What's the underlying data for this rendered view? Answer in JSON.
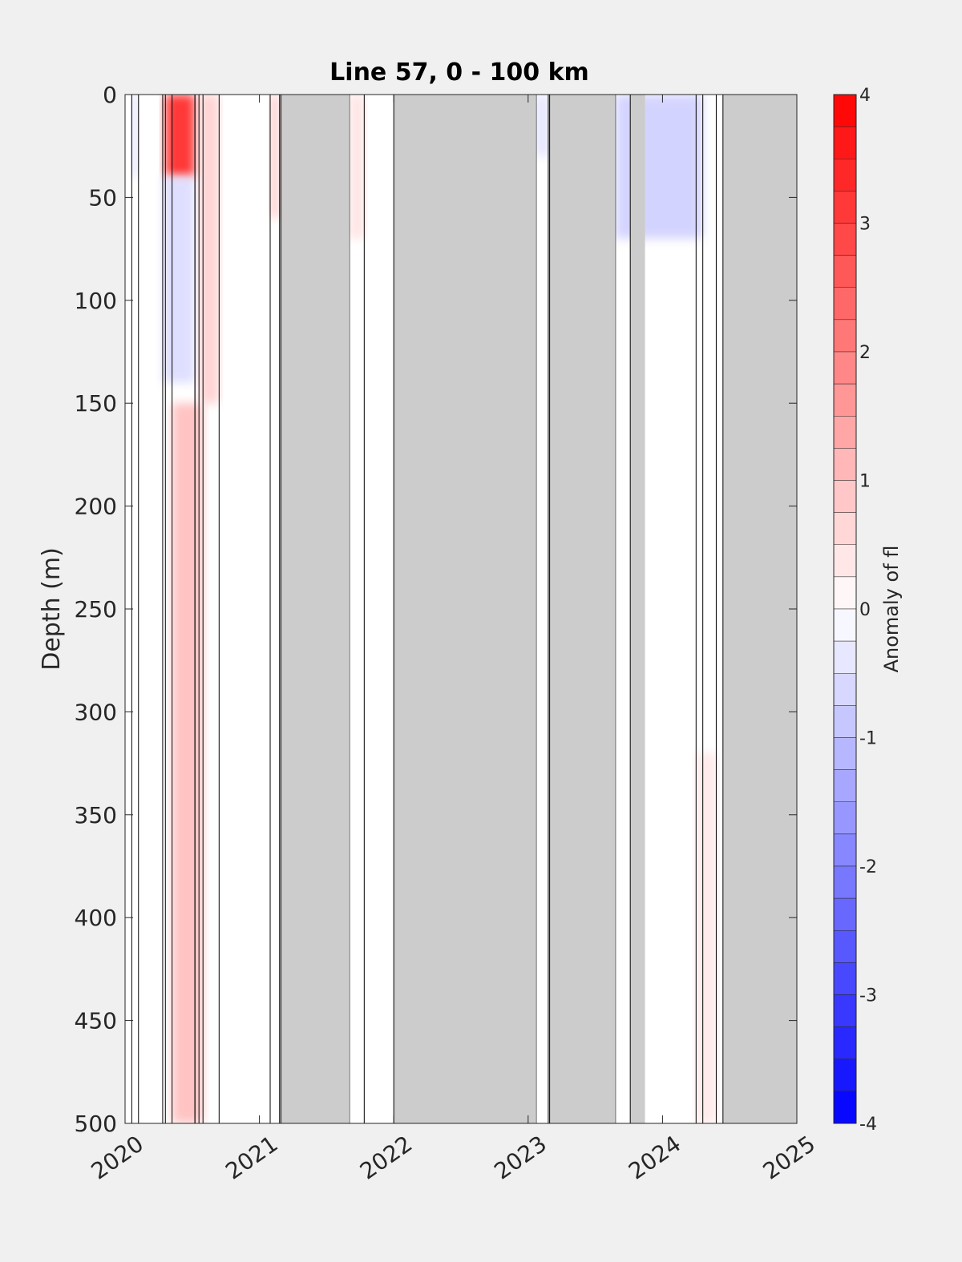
{
  "chart_data": {
    "type": "heatmap",
    "title": "Line 57, 0 - 100 km",
    "xlabel": "",
    "ylabel": "Depth (m)",
    "colorbar_label": "Anomaly of fl",
    "xlim": [
      2020,
      2025
    ],
    "ylim": [
      0,
      500
    ],
    "y_reversed": true,
    "x_ticks": [
      "2020",
      "2021",
      "2022",
      "2023",
      "2024",
      "2025"
    ],
    "y_ticks": [
      "0",
      "50",
      "100",
      "150",
      "200",
      "250",
      "300",
      "350",
      "400",
      "450",
      "500"
    ],
    "colorbar_range": [
      -4,
      4
    ],
    "colorbar_step": 0.25,
    "colorbar_ticks": [
      "-4",
      "-3",
      "-2",
      "-1",
      "0",
      "1",
      "2",
      "3",
      "4"
    ],
    "colors": {
      "positive": "#ff0000",
      "negative": "#0000ff",
      "zero": "#ffffff",
      "missing": "#cccccc",
      "background": "#f0f0f0"
    },
    "missing_data_periods": [
      [
        2021.16,
        2021.67
      ],
      [
        2022.0,
        2023.06
      ],
      [
        2023.16,
        2023.65
      ],
      [
        2023.76,
        2023.87
      ],
      [
        2024.45,
        2025.0
      ]
    ],
    "anomaly_features": [
      {
        "x": [
          2020.05,
          2020.1
        ],
        "depth": [
          0,
          40
        ],
        "value": -0.5
      },
      {
        "x": [
          2020.3,
          2020.52
        ],
        "depth": [
          0,
          40
        ],
        "value": 3.6
      },
      {
        "x": [
          2020.28,
          2020.52
        ],
        "depth": [
          40,
          140
        ],
        "value": -0.6
      },
      {
        "x": [
          2020.55,
          2020.7
        ],
        "depth": [
          0,
          150
        ],
        "value": 0.8
      },
      {
        "x": [
          2020.35,
          2020.58
        ],
        "depth": [
          150,
          500
        ],
        "value": 1.1
      },
      {
        "x": [
          2021.08,
          2021.15
        ],
        "depth": [
          0,
          60
        ],
        "value": 0.9
      },
      {
        "x": [
          2021.67,
          2021.78
        ],
        "depth": [
          0,
          70
        ],
        "value": 0.5
      },
      {
        "x": [
          2023.06,
          2023.15
        ],
        "depth": [
          0,
          30
        ],
        "value": -0.5
      },
      {
        "x": [
          2023.65,
          2024.3
        ],
        "depth": [
          0,
          70
        ],
        "value": -0.8
      },
      {
        "x": [
          2024.25,
          2024.4
        ],
        "depth": [
          320,
          500
        ],
        "value": 0.4
      }
    ]
  }
}
